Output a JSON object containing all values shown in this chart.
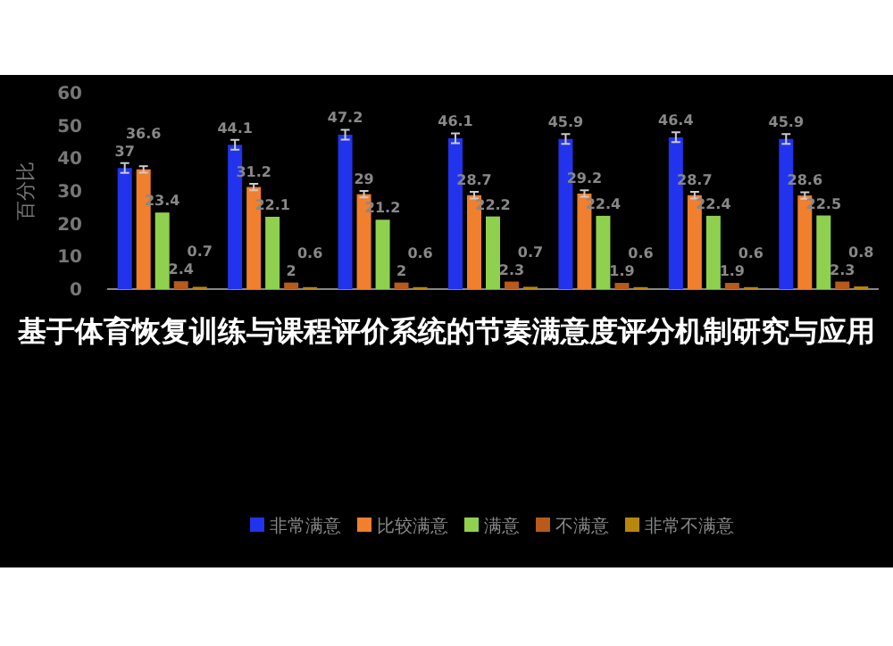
{
  "chart_data": {
    "type": "bar",
    "title": "基于体育恢复训练与课程评价系统的节奏满意度评分机制研究与应用",
    "ylabel": "百分比",
    "categories": [
      null,
      null,
      null,
      null,
      null,
      null,
      null
    ],
    "series": [
      {
        "name": "非常满意",
        "color": "#2233ee",
        "values": [
          37,
          44.1,
          47.2,
          46.1,
          45.9,
          46.4,
          45.9
        ],
        "errors": [
          1.5,
          1.5,
          1.5,
          1.5,
          1.5,
          1.5,
          1.5
        ]
      },
      {
        "name": "比较满意",
        "color": "#f07f2e",
        "values": [
          36.6,
          31.2,
          29,
          28.7,
          29.2,
          28.7,
          28.6
        ],
        "errors": [
          1,
          1,
          1,
          1,
          1,
          1,
          1
        ]
      },
      {
        "name": "满意",
        "color": "#8fd14f",
        "values": [
          23.4,
          22.1,
          21.2,
          22.2,
          22.4,
          22.4,
          22.5
        ]
      },
      {
        "name": "不满意",
        "color": "#b85a1a",
        "values": [
          2.4,
          2,
          2,
          2.3,
          1.9,
          1.9,
          2.3
        ]
      },
      {
        "name": "非常不满意",
        "color": "#b8860b",
        "values": [
          0.7,
          0.6,
          0.6,
          0.7,
          0.6,
          0.6,
          0.8
        ]
      }
    ],
    "ylim": [
      0,
      60
    ],
    "yticks": [
      0,
      10,
      20,
      30,
      40,
      50,
      60
    ],
    "data_labels": true,
    "legend": "bottom",
    "grid": false
  }
}
